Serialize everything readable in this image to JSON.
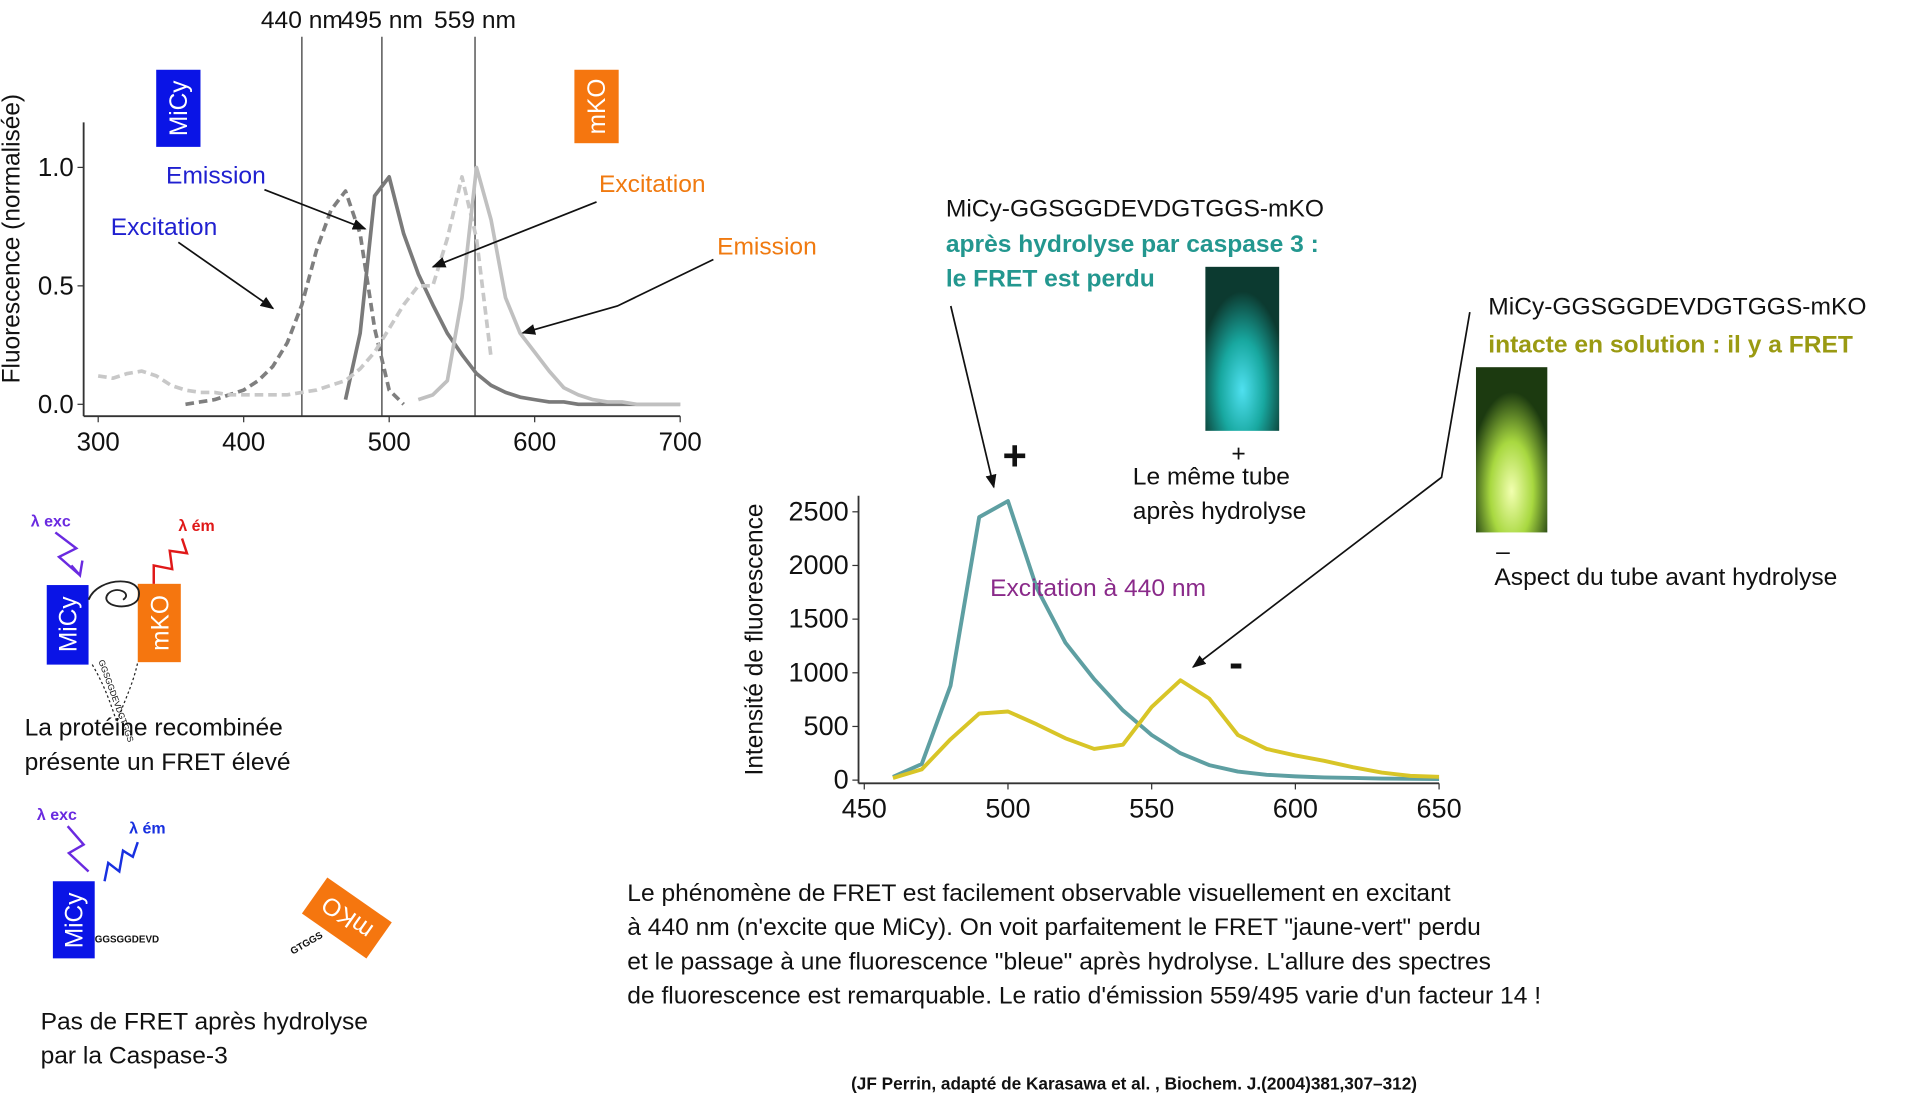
{
  "chart_data": [
    {
      "type": "line",
      "ylabel": "Fluorescence (normalisée)",
      "x": [
        300,
        310,
        320,
        330,
        340,
        350,
        360,
        370,
        380,
        390,
        400,
        410,
        420,
        430,
        440,
        450,
        460,
        470,
        480,
        490,
        500,
        510,
        520,
        530,
        540,
        550,
        560,
        570,
        580,
        590,
        600,
        610,
        620,
        630,
        640,
        650,
        660,
        670,
        680,
        690,
        700
      ],
      "xlim": [
        290,
        700
      ],
      "ylim": [
        -0.05,
        1.19
      ],
      "xticks": [
        300,
        400,
        500,
        600,
        700
      ],
      "yticks": [
        {
          "value": 0,
          "label": "0.0"
        },
        {
          "value": 0.5,
          "label": "0.5"
        },
        {
          "value": 1,
          "label": "1.0"
        }
      ],
      "vlines": [
        {
          "value": 440,
          "label": "440 nm"
        },
        {
          "value": 495,
          "label": "495 nm"
        },
        {
          "value": 559,
          "label": "559 nm"
        }
      ],
      "badges": [
        {
          "label": "MiCy",
          "color": "#0a14e6"
        },
        {
          "label": "mKO",
          "color": "#f5760f"
        }
      ],
      "series": [
        {
          "name": "Excitation",
          "color": "#7f7f7f",
          "label_color": "#2020d0",
          "dashed": true,
          "values": [
            null,
            null,
            null,
            null,
            null,
            null,
            0.0,
            0.01,
            0.02,
            0.04,
            0.06,
            0.1,
            0.16,
            0.26,
            0.42,
            0.65,
            0.82,
            0.9,
            0.72,
            0.32,
            0.06,
            0.0,
            null,
            null,
            null,
            null,
            null,
            null,
            null,
            null,
            null,
            null,
            null,
            null,
            null,
            null,
            null,
            null,
            null,
            null,
            null
          ]
        },
        {
          "name": "Emission",
          "color": "#7a7a7a",
          "label_color": "#2020d0",
          "dashed": false,
          "values": [
            null,
            null,
            null,
            null,
            null,
            null,
            null,
            null,
            null,
            null,
            null,
            null,
            null,
            null,
            null,
            null,
            null,
            0.02,
            0.3,
            0.88,
            0.96,
            0.72,
            0.55,
            0.42,
            0.3,
            0.21,
            0.13,
            0.08,
            0.05,
            0.03,
            0.02,
            0.01,
            0.01,
            0.0,
            0,
            0,
            0,
            0,
            0,
            0,
            0
          ]
        },
        {
          "name": "Excitation",
          "color": "#c8c8c8",
          "label_color": "#f07a10",
          "dashed": true,
          "values": [
            0.12,
            0.11,
            0.13,
            0.14,
            0.12,
            0.08,
            0.06,
            0.05,
            0.05,
            0.04,
            0.04,
            0.04,
            0.04,
            0.04,
            0.05,
            0.06,
            0.08,
            0.1,
            0.15,
            0.22,
            0.32,
            0.42,
            0.5,
            0.5,
            0.7,
            0.96,
            0.7,
            0.2,
            null,
            null,
            null,
            null,
            null,
            null,
            null,
            null,
            null,
            null,
            null,
            null,
            null
          ]
        },
        {
          "name": "Emission",
          "color": "#c0c0c0",
          "label_color": "#f07a10",
          "dashed": false,
          "values": [
            null,
            null,
            null,
            null,
            null,
            null,
            null,
            null,
            null,
            null,
            null,
            null,
            null,
            null,
            null,
            null,
            null,
            null,
            null,
            null,
            null,
            null,
            0.02,
            0.04,
            0.1,
            0.45,
            1.0,
            0.78,
            0.45,
            0.3,
            0.22,
            0.14,
            0.07,
            0.04,
            0.02,
            0.01,
            0.01,
            0.0,
            0.0,
            0.0,
            0.0
          ]
        }
      ]
    },
    {
      "type": "line",
      "ylabel": "Intensité de fluorescence",
      "annotation": "Excitation à 440 nm",
      "plus": "+",
      "minus": "-",
      "x": [
        460,
        470,
        480,
        490,
        500,
        510,
        520,
        530,
        540,
        550,
        560,
        570,
        580,
        590,
        600,
        610,
        620,
        630,
        640,
        650
      ],
      "xlim": [
        448,
        650
      ],
      "ylim": [
        -30,
        2650
      ],
      "xticks": [
        450,
        500,
        550,
        600,
        650
      ],
      "yticks": [
        0,
        500,
        1000,
        1500,
        2000,
        2500
      ],
      "series": [
        {
          "color": "#5e9fa2",
          "values": [
            30,
            150,
            880,
            2450,
            2600,
            1790,
            1280,
            940,
            650,
            420,
            250,
            140,
            80,
            50,
            35,
            25,
            20,
            15,
            12,
            10
          ]
        },
        {
          "color": "#d8c527",
          "values": [
            20,
            100,
            380,
            620,
            640,
            520,
            390,
            290,
            330,
            680,
            930,
            760,
            420,
            290,
            230,
            180,
            120,
            70,
            40,
            30
          ]
        }
      ]
    }
  ],
  "hydrolysed": {
    "construct": "MiCy-GGSGGDEVDGTGGS-mKO",
    "line1": "après hydrolyse par caspase 3 :",
    "line2": "le FRET est perdu",
    "tube_sign": "+",
    "tube_caption": [
      "Le même tube",
      "après hydrolyse"
    ]
  },
  "intact": {
    "construct": "MiCy-GGSGGDEVDGTGGS-mKO",
    "line1": "intacte en solution : il y a FRET",
    "tube_sign": "–",
    "tube_caption": "Aspect du tube avant hydrolyse"
  },
  "diagram_fret": {
    "exc": "λ exc",
    "em": "λ ém",
    "donor": "MiCy",
    "acceptor": "mKO",
    "linker": "GGSGGDEVDGTGGS",
    "caption": [
      "La protéine recombinée",
      "présente un FRET élevé"
    ]
  },
  "diagram_cleaved": {
    "exc": "λ exc",
    "em": "λ ém",
    "donor": "MiCy",
    "acceptor": "mKO",
    "linker_left": "GGSGGDEVD",
    "linker_right": "GTGGS",
    "caption": [
      "Pas de FRET après hydrolyse",
      "par la Caspase-3"
    ]
  },
  "paragraph": [
    "Le phénomène de FRET est facilement observable  visuellement en excitant",
    "à 440 nm (n'excite que MiCy). On voit parfaitement le FRET \"jaune-vert\" perdu",
    "et le passage à une fluorescence \"bleue\" après hydrolyse. L'allure des spectres",
    "de fluorescence est remarquable. Le ratio d'émission 559/495 varie d'un facteur 14 !"
  ],
  "citation": "(JF Perrin, adapté de Karasawa et al. , Biochem. J.(2004)381,307–312)"
}
